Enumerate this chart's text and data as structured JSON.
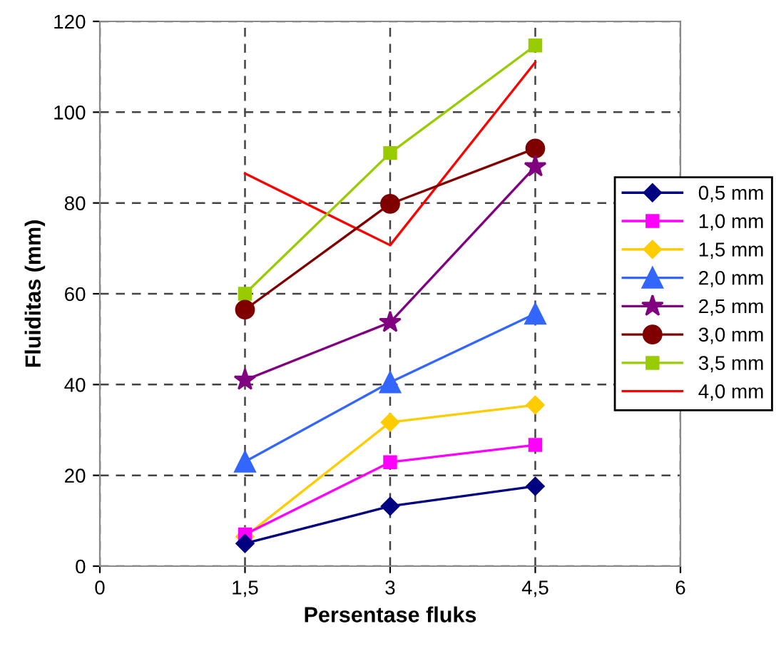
{
  "chart_data": {
    "type": "line",
    "xlabel": "Persentase fluks",
    "ylabel": "Fluiditas (mm)",
    "x": [
      1.5,
      3,
      4.5
    ],
    "xlim": [
      0,
      6
    ],
    "xticks": [
      0,
      {
        "value": 1.5,
        "label": "1,5"
      },
      3,
      {
        "value": 4.5,
        "label": "4,5"
      },
      6
    ],
    "ylim": [
      0,
      120
    ],
    "yticks": [
      0,
      20,
      40,
      60,
      80,
      100,
      120
    ],
    "grid": true,
    "legend": "right",
    "series": [
      {
        "name": "0,5 mm",
        "color": "#000080",
        "marker": "diamond",
        "values": [
          5,
          13.2,
          17.6
        ]
      },
      {
        "name": "1,0 mm",
        "color": "#ff00ff",
        "marker": "square",
        "values": [
          7,
          22.9,
          26.7
        ]
      },
      {
        "name": "1,5 mm",
        "color": "#ffcc00",
        "marker": "diamond",
        "values": [
          6.5,
          31.7,
          35.5
        ]
      },
      {
        "name": "2,0 mm",
        "color": "#3366ff",
        "marker": "triangle",
        "values": [
          23,
          40.5,
          55.6
        ]
      },
      {
        "name": "2,5 mm",
        "color": "#800080",
        "marker": "star",
        "values": [
          41,
          53.7,
          88
        ]
      },
      {
        "name": "3,0 mm",
        "color": "#800000",
        "marker": "circle",
        "values": [
          56.5,
          79.8,
          92
        ]
      },
      {
        "name": "3,5 mm",
        "color": "#99cc00",
        "marker": "square",
        "values": [
          60,
          91,
          114.7
        ]
      },
      {
        "name": "4,0 mm",
        "color": "#ff0000",
        "marker": "none",
        "values": [
          86.5,
          70.7,
          111
        ]
      }
    ]
  }
}
